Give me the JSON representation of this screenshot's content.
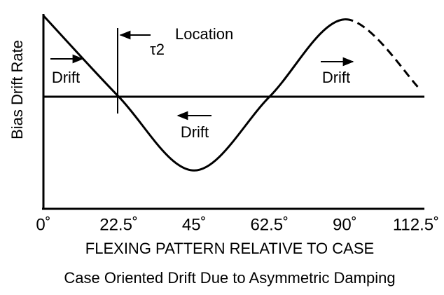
{
  "chart_data": {
    "type": "line",
    "title": "Case Oriented Drift Due to Asymmetric Damping",
    "x_label": "FLEXING PATTERN RELATIVE TO CASE",
    "y_label": "Bias Drift Rate",
    "categories": [
      "0˚",
      "22.5˚",
      "45˚",
      "62.5˚",
      "90˚",
      "112.5˚"
    ],
    "series": [
      {
        "color": "#000000",
        "values": [
          1.1,
          0,
          -1,
          0,
          1.05,
          null
        ]
      },
      {
        "color": "#000000",
        "dashed": true,
        "values": [
          null,
          null,
          null,
          null,
          1.05,
          0.1
        ]
      }
    ],
    "ylim": [
      -1.52,
      1.17
    ],
    "annotations": [
      "Drift",
      "Drift",
      "Drift",
      "τ2",
      "Location"
    ]
  }
}
